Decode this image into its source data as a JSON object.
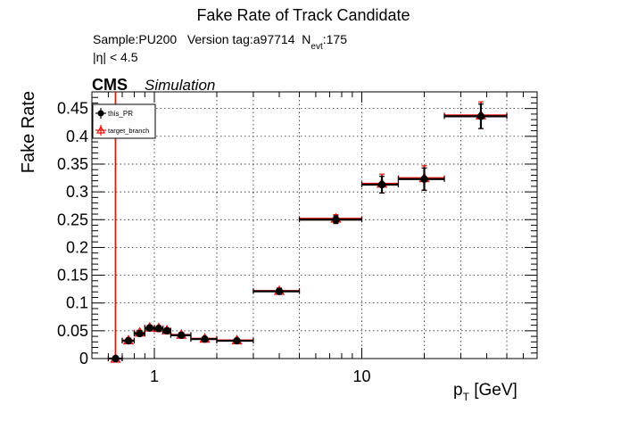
{
  "chart_data": {
    "type": "scatter",
    "title": "Fake Rate of Track Candidate",
    "info": {
      "sample_prefix": "Sample:PU200   Version tag:a97714  N",
      "sample_sub": "evt",
      "sample_suffix": ":175",
      "eta_cut": "|η| < 4.5"
    },
    "cms_label": "CMS",
    "sim_label": "Simulation",
    "ylabel": "Fake Rate",
    "xlabel_main": "p",
    "xlabel_sub": "T",
    "xlabel_unit": " [GeV]",
    "xscale": "log",
    "xlim": [
      0.5,
      70
    ],
    "ylim": [
      0,
      0.48
    ],
    "grid": true,
    "legend_position": "top-left",
    "yticks": [
      0,
      0.05,
      0.1,
      0.15,
      0.2,
      0.25,
      0.3,
      0.35,
      0.4,
      0.45
    ],
    "ytick_labels": [
      "0",
      "0.05",
      "0.1",
      "0.15",
      "0.2",
      "0.25",
      "0.3",
      "0.35",
      "0.4",
      "0.45"
    ],
    "xticks_major": [
      1,
      10
    ],
    "xtick_labels": [
      "1",
      "10"
    ],
    "series": [
      {
        "name": "this_PR",
        "color": "#000000",
        "marker": "circle",
        "points": [
          {
            "x": 0.65,
            "xlo": 0.6,
            "xhi": 0.7,
            "y": 0.0,
            "err": 0.002
          },
          {
            "x": 0.75,
            "xlo": 0.7,
            "xhi": 0.8,
            "y": 0.032,
            "err": 0.004
          },
          {
            "x": 0.85,
            "xlo": 0.8,
            "xhi": 0.9,
            "y": 0.045,
            "err": 0.004
          },
          {
            "x": 0.95,
            "xlo": 0.9,
            "xhi": 1.0,
            "y": 0.055,
            "err": 0.004
          },
          {
            "x": 1.05,
            "xlo": 1.0,
            "xhi": 1.1,
            "y": 0.054,
            "err": 0.004
          },
          {
            "x": 1.15,
            "xlo": 1.1,
            "xhi": 1.2,
            "y": 0.05,
            "err": 0.004
          },
          {
            "x": 1.35,
            "xlo": 1.2,
            "xhi": 1.5,
            "y": 0.042,
            "err": 0.004
          },
          {
            "x": 1.75,
            "xlo": 1.5,
            "xhi": 2.0,
            "y": 0.035,
            "err": 0.003
          },
          {
            "x": 2.5,
            "xlo": 2.0,
            "xhi": 3.0,
            "y": 0.032,
            "err": 0.003
          },
          {
            "x": 4.0,
            "xlo": 3.0,
            "xhi": 5.0,
            "y": 0.121,
            "err": 0.005
          },
          {
            "x": 7.5,
            "xlo": 5.0,
            "xhi": 10.0,
            "y": 0.25,
            "err": 0.007
          },
          {
            "x": 12.5,
            "xlo": 10.0,
            "xhi": 15.0,
            "y": 0.313,
            "err": 0.015
          },
          {
            "x": 20.0,
            "xlo": 15.0,
            "xhi": 25.0,
            "y": 0.323,
            "err": 0.02
          },
          {
            "x": 37.5,
            "xlo": 25.0,
            "xhi": 50.0,
            "y": 0.436,
            "err": 0.022
          }
        ]
      },
      {
        "name": "target_branch",
        "color": "#e8120c",
        "marker": "triangle-open",
        "points": [
          {
            "x": 0.65,
            "xlo": 0.6,
            "xhi": 0.7,
            "y": 0.0,
            "err": 0.48
          },
          {
            "x": 0.75,
            "xlo": 0.7,
            "xhi": 0.8,
            "y": 0.033,
            "err": 0.004
          },
          {
            "x": 0.85,
            "xlo": 0.8,
            "xhi": 0.9,
            "y": 0.047,
            "err": 0.004
          },
          {
            "x": 0.95,
            "xlo": 0.9,
            "xhi": 1.0,
            "y": 0.056,
            "err": 0.004
          },
          {
            "x": 1.05,
            "xlo": 1.0,
            "xhi": 1.1,
            "y": 0.055,
            "err": 0.004
          },
          {
            "x": 1.15,
            "xlo": 1.1,
            "xhi": 1.2,
            "y": 0.051,
            "err": 0.004
          },
          {
            "x": 1.35,
            "xlo": 1.2,
            "xhi": 1.5,
            "y": 0.043,
            "err": 0.004
          },
          {
            "x": 1.75,
            "xlo": 1.5,
            "xhi": 2.0,
            "y": 0.036,
            "err": 0.003
          },
          {
            "x": 2.5,
            "xlo": 2.0,
            "xhi": 3.0,
            "y": 0.033,
            "err": 0.003
          },
          {
            "x": 4.0,
            "xlo": 3.0,
            "xhi": 5.0,
            "y": 0.122,
            "err": 0.005
          },
          {
            "x": 7.5,
            "xlo": 5.0,
            "xhi": 10.0,
            "y": 0.252,
            "err": 0.007
          },
          {
            "x": 12.5,
            "xlo": 10.0,
            "xhi": 15.0,
            "y": 0.315,
            "err": 0.017
          },
          {
            "x": 20.0,
            "xlo": 15.0,
            "xhi": 25.0,
            "y": 0.325,
            "err": 0.022
          },
          {
            "x": 37.5,
            "xlo": 25.0,
            "xhi": 50.0,
            "y": 0.438,
            "err": 0.024
          }
        ]
      }
    ]
  }
}
